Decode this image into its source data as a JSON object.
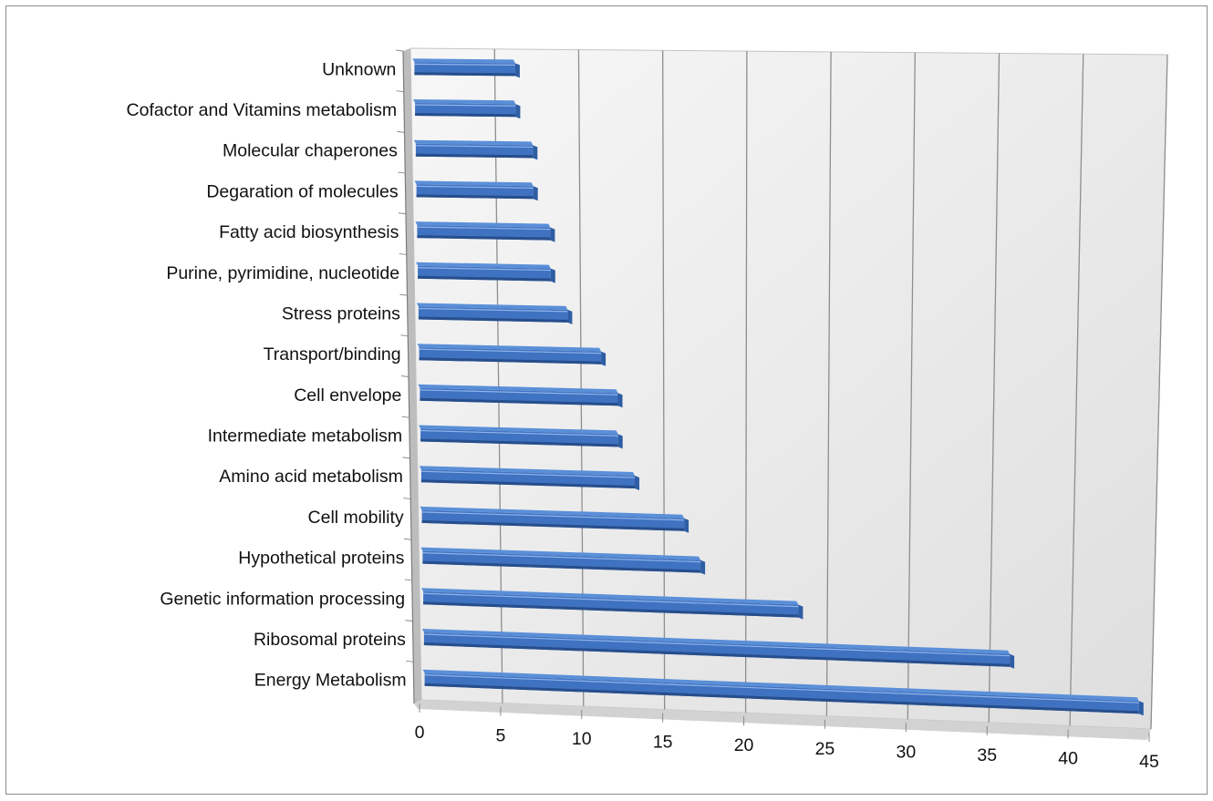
{
  "chart_data": {
    "type": "bar",
    "orientation": "horizontal",
    "style": "3d",
    "title": "",
    "xlabel": "",
    "ylabel": "",
    "categories": [
      "Unknown",
      "Cofactor and Vitamins metabolism",
      "Molecular chaperones",
      "Degaration of molecules",
      "Fatty acid biosynthesis",
      "Purine, pyrimidine, nucleotide",
      "Stress proteins",
      "Transport/binding",
      "Cell envelope",
      "Intermediate metabolism",
      "Amino acid metabolism",
      "Cell mobility",
      "Hypothetical proteins",
      "Genetic information processing",
      "Ribosomal proteins",
      "Energy Metabolism"
    ],
    "values": [
      6,
      6,
      7,
      7,
      8,
      8,
      9,
      11,
      12,
      12,
      13,
      16,
      17,
      23,
      36,
      44
    ],
    "xlim": [
      0,
      45
    ],
    "xticks": [
      "0",
      "5",
      "10",
      "15",
      "20",
      "25",
      "30",
      "35",
      "40",
      "45"
    ],
    "grid": true,
    "legend": "none",
    "colors": {
      "bar_top": "#5a8fd8",
      "bar_face": "#3f72c1",
      "bar_bottom": "#274e8c",
      "bar_end": "#2e5da3",
      "wall": "#e6e6e6",
      "floor": "#d2d2d2",
      "gridline": "#8e8e8e"
    }
  }
}
